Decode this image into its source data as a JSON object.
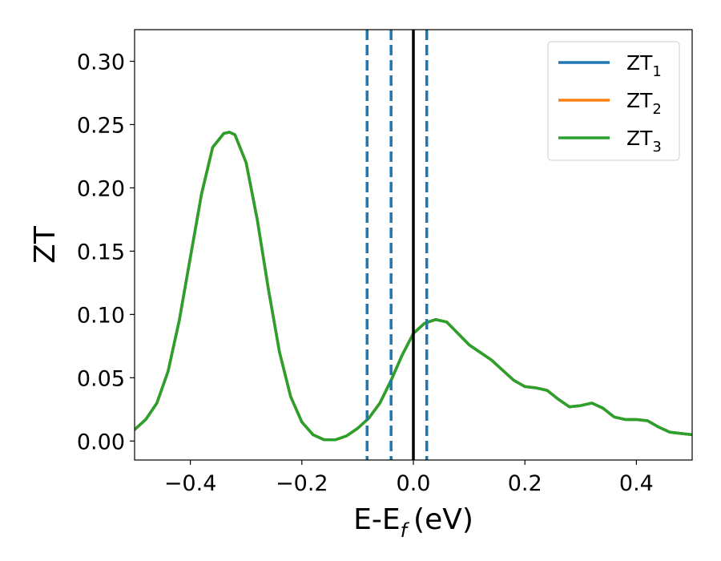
{
  "chart_data": {
    "type": "line",
    "title": "",
    "xlabel": "E-E",
    "xlabel_sub": "f",
    "xlabel_unit": "(eV)",
    "ylabel": "ZT",
    "xlim": [
      -0.5,
      0.5
    ],
    "ylim": [
      -0.015,
      0.325
    ],
    "grid": false,
    "legend": "top-right",
    "xticks": [
      -0.4,
      -0.2,
      0.0,
      0.2,
      0.4
    ],
    "xtick_labels": [
      "−0.4",
      "−0.2",
      "0.0",
      "0.2",
      "0.4"
    ],
    "yticks": [
      0.0,
      0.05,
      0.1,
      0.15,
      0.2,
      0.25,
      0.3
    ],
    "ytick_labels": [
      "0.00",
      "0.05",
      "0.10",
      "0.15",
      "0.20",
      "0.25",
      "0.30"
    ],
    "x": [
      -0.5,
      -0.48,
      -0.46,
      -0.44,
      -0.42,
      -0.4,
      -0.38,
      -0.36,
      -0.34,
      -0.33,
      -0.32,
      -0.3,
      -0.28,
      -0.26,
      -0.24,
      -0.22,
      -0.2,
      -0.18,
      -0.16,
      -0.14,
      -0.12,
      -0.1,
      -0.08,
      -0.06,
      -0.04,
      -0.02,
      0.0,
      0.02,
      0.04,
      0.06,
      0.08,
      0.1,
      0.12,
      0.14,
      0.16,
      0.18,
      0.2,
      0.22,
      0.24,
      0.26,
      0.28,
      0.3,
      0.32,
      0.34,
      0.36,
      0.38,
      0.4,
      0.42,
      0.44,
      0.46,
      0.48,
      0.5
    ],
    "series": [
      {
        "name_base": "ZT",
        "name_sub": "1",
        "color": "#1f77b4",
        "values": [
          0.009,
          0.017,
          0.03,
          0.055,
          0.095,
          0.145,
          0.195,
          0.232,
          0.243,
          0.244,
          0.242,
          0.22,
          0.175,
          0.12,
          0.07,
          0.035,
          0.015,
          0.005,
          0.001,
          0.001,
          0.004,
          0.01,
          0.018,
          0.03,
          0.048,
          0.068,
          0.085,
          0.093,
          0.096,
          0.094,
          0.085,
          0.076,
          0.07,
          0.064,
          0.056,
          0.048,
          0.043,
          0.042,
          0.04,
          0.033,
          0.027,
          0.028,
          0.03,
          0.026,
          0.019,
          0.017,
          0.017,
          0.016,
          0.011,
          0.007,
          0.006,
          0.005
        ]
      },
      {
        "name_base": "ZT",
        "name_sub": "2",
        "color": "#ff7f0e",
        "values": [
          0.009,
          0.017,
          0.03,
          0.055,
          0.095,
          0.145,
          0.195,
          0.232,
          0.243,
          0.244,
          0.242,
          0.22,
          0.175,
          0.12,
          0.07,
          0.035,
          0.015,
          0.005,
          0.001,
          0.001,
          0.004,
          0.01,
          0.018,
          0.03,
          0.048,
          0.068,
          0.085,
          0.093,
          0.096,
          0.094,
          0.085,
          0.076,
          0.07,
          0.064,
          0.056,
          0.048,
          0.043,
          0.042,
          0.04,
          0.033,
          0.027,
          0.028,
          0.03,
          0.026,
          0.019,
          0.017,
          0.017,
          0.016,
          0.011,
          0.007,
          0.006,
          0.005
        ]
      },
      {
        "name_base": "ZT",
        "name_sub": "3",
        "color": "#2ca02c",
        "values": [
          0.009,
          0.017,
          0.03,
          0.055,
          0.095,
          0.145,
          0.195,
          0.232,
          0.243,
          0.244,
          0.242,
          0.22,
          0.175,
          0.12,
          0.07,
          0.035,
          0.015,
          0.005,
          0.001,
          0.001,
          0.004,
          0.01,
          0.018,
          0.03,
          0.048,
          0.068,
          0.085,
          0.093,
          0.096,
          0.094,
          0.085,
          0.076,
          0.07,
          0.064,
          0.056,
          0.048,
          0.043,
          0.042,
          0.04,
          0.033,
          0.027,
          0.028,
          0.03,
          0.026,
          0.019,
          0.017,
          0.017,
          0.016,
          0.011,
          0.007,
          0.006,
          0.005
        ]
      }
    ],
    "vlines": [
      {
        "x": -0.083,
        "style": "dashed",
        "color": "#1f77b4"
      },
      {
        "x": -0.04,
        "style": "dashed",
        "color": "#1f77b4"
      },
      {
        "x": 0.0,
        "style": "solid",
        "color": "#000000"
      },
      {
        "x": 0.024,
        "style": "dashed",
        "color": "#1f77b4"
      }
    ]
  }
}
